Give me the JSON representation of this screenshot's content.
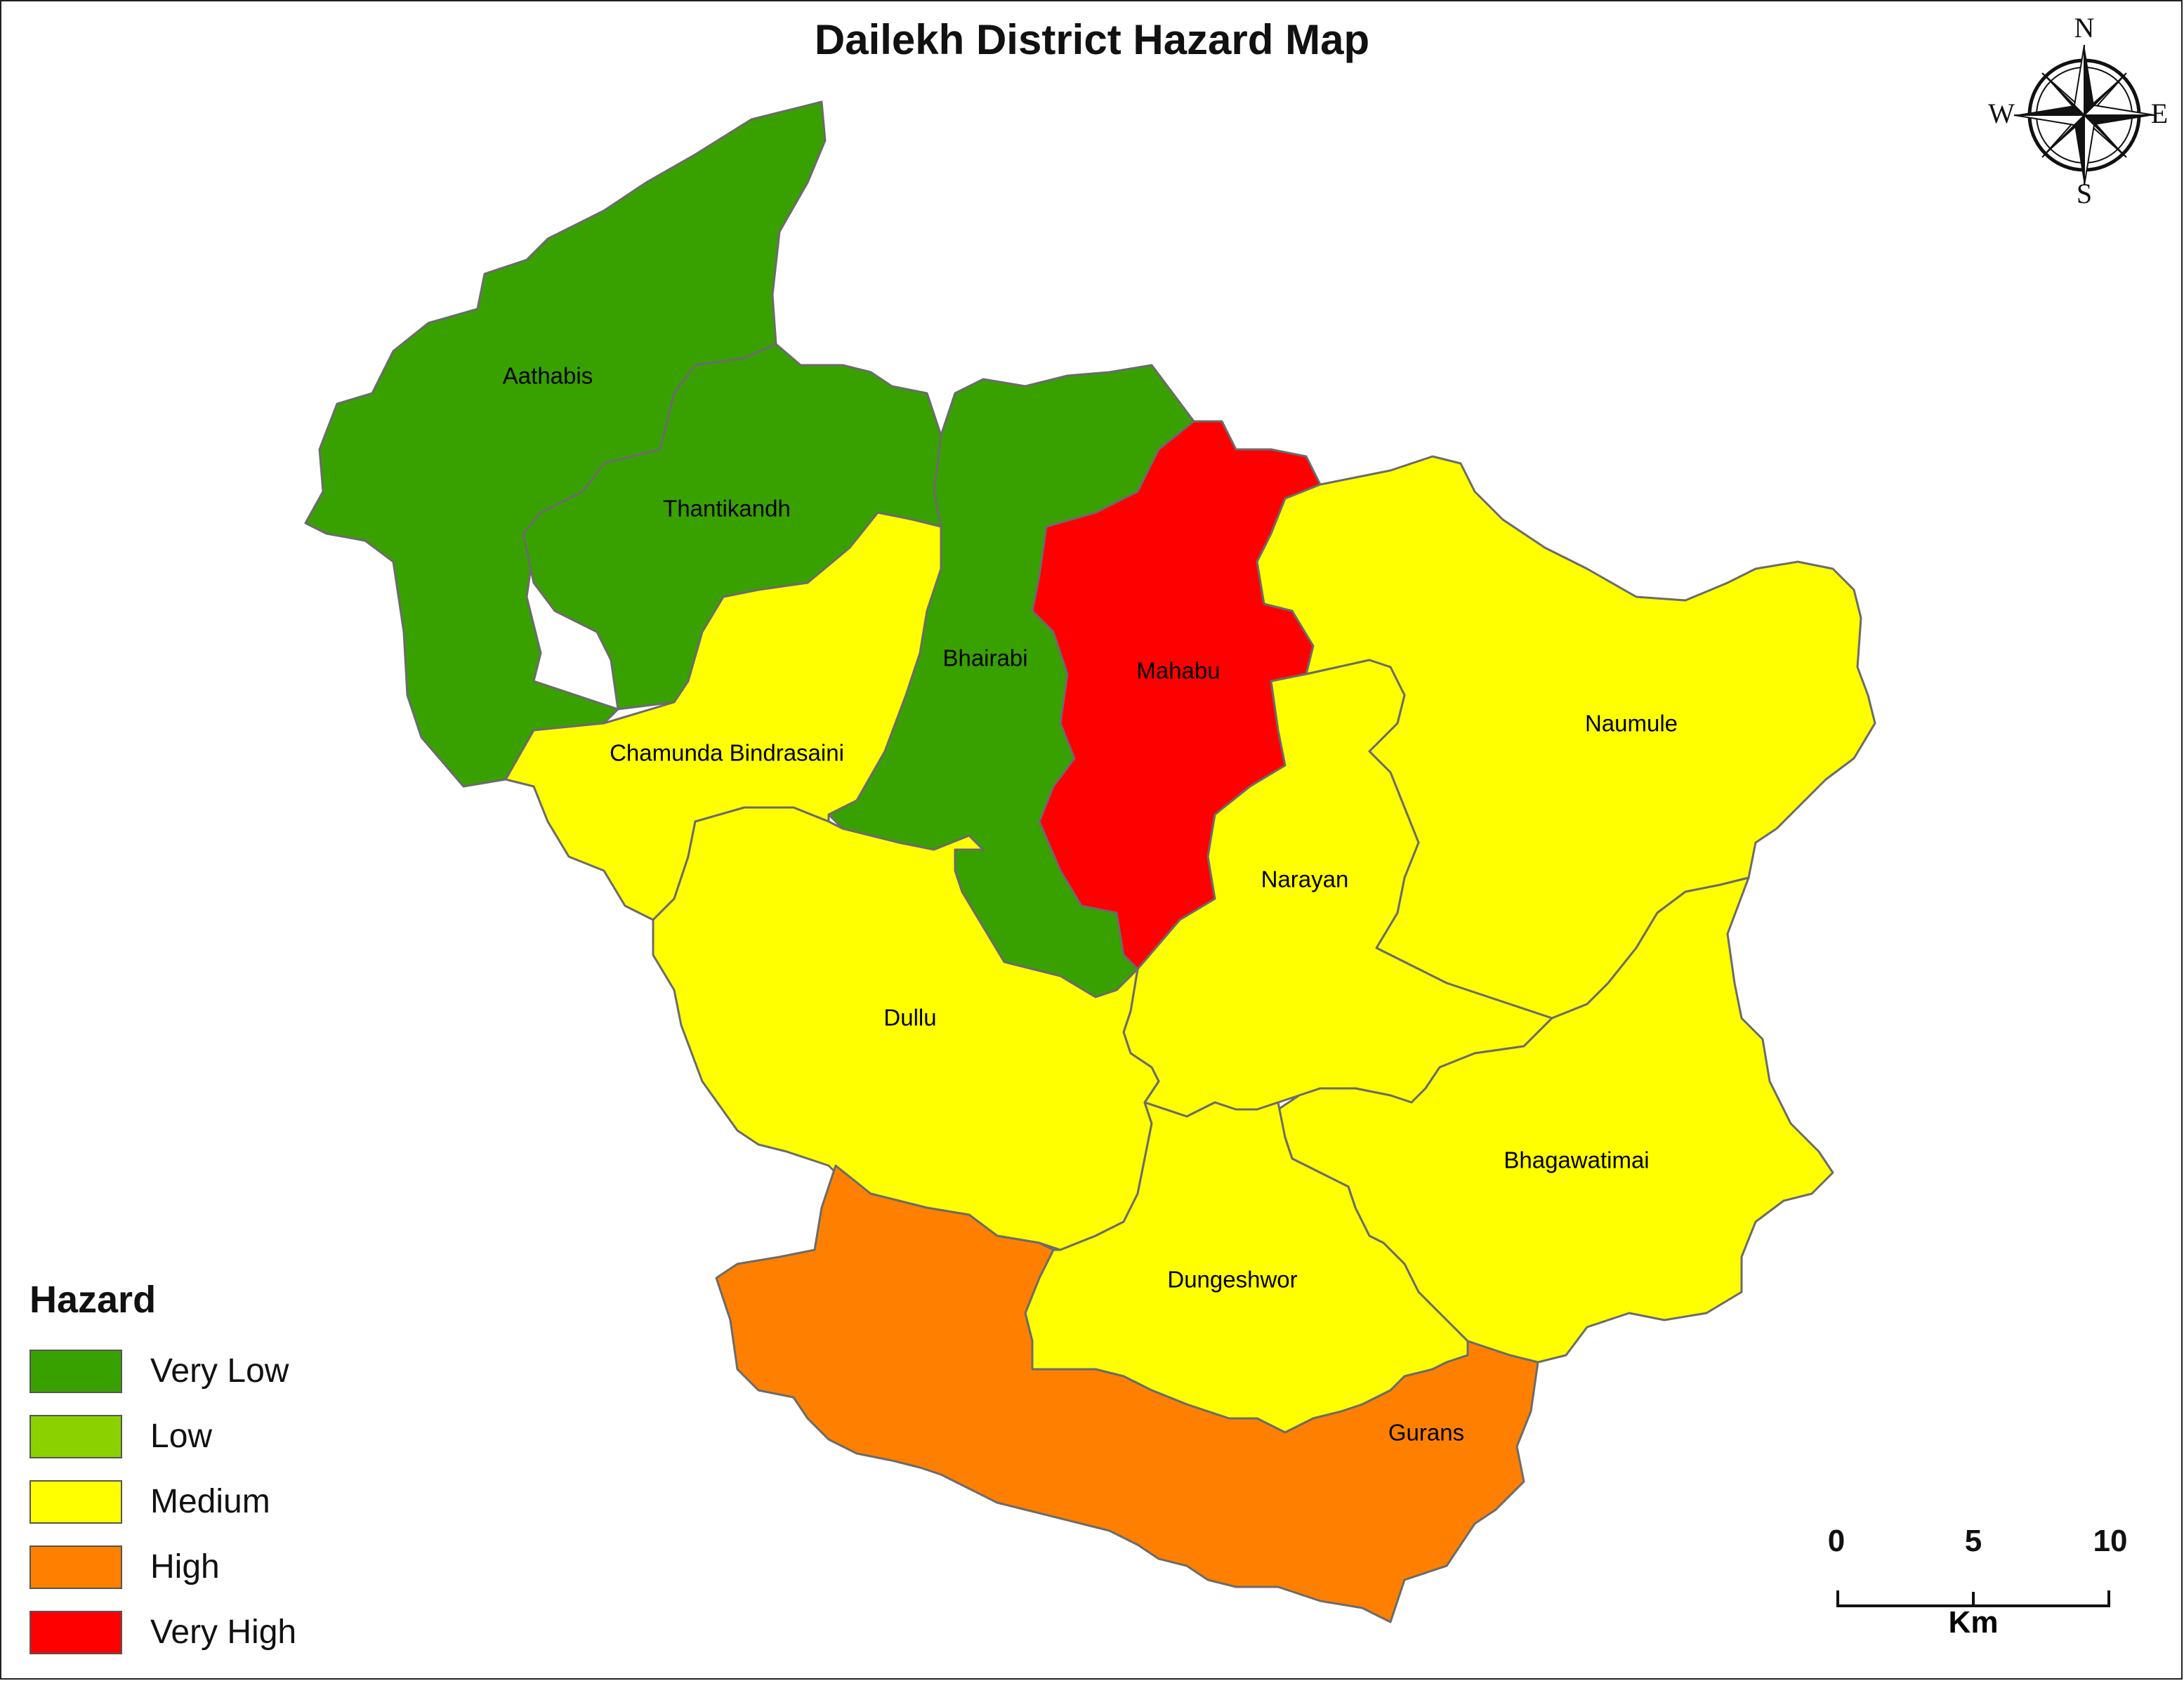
{
  "title": "Dailekh District Hazard Map",
  "legend": {
    "title": "Hazard",
    "items": [
      {
        "label": "Very Low",
        "color": "#38a100"
      },
      {
        "label": "Low",
        "color": "#8bd100"
      },
      {
        "label": "Medium",
        "color": "#ffff00"
      },
      {
        "label": "High",
        "color": "#ff8000"
      },
      {
        "label": "Very High",
        "color": "#ff0000"
      }
    ]
  },
  "regions": [
    {
      "name": "Aathabis",
      "hazard": "Very Low"
    },
    {
      "name": "Thantikandh",
      "hazard": "Very Low"
    },
    {
      "name": "Bhairabi",
      "hazard": "Very Low"
    },
    {
      "name": "Mahabu",
      "hazard": "Very High"
    },
    {
      "name": "Chamunda Bindrasaini",
      "hazard": "Medium"
    },
    {
      "name": "Naumule",
      "hazard": "Medium"
    },
    {
      "name": "Narayan",
      "hazard": "Medium"
    },
    {
      "name": "Dullu",
      "hazard": "Medium"
    },
    {
      "name": "Bhagawatimai",
      "hazard": "Medium"
    },
    {
      "name": "Dungeshwor",
      "hazard": "Medium"
    },
    {
      "name": "Gurans",
      "hazard": "High"
    }
  ],
  "scale_bar": {
    "ticks": [
      "0",
      "5",
      "10"
    ],
    "unit": "Km"
  },
  "compass": {
    "north": "N",
    "east": "E",
    "south": "S",
    "west": "W"
  }
}
